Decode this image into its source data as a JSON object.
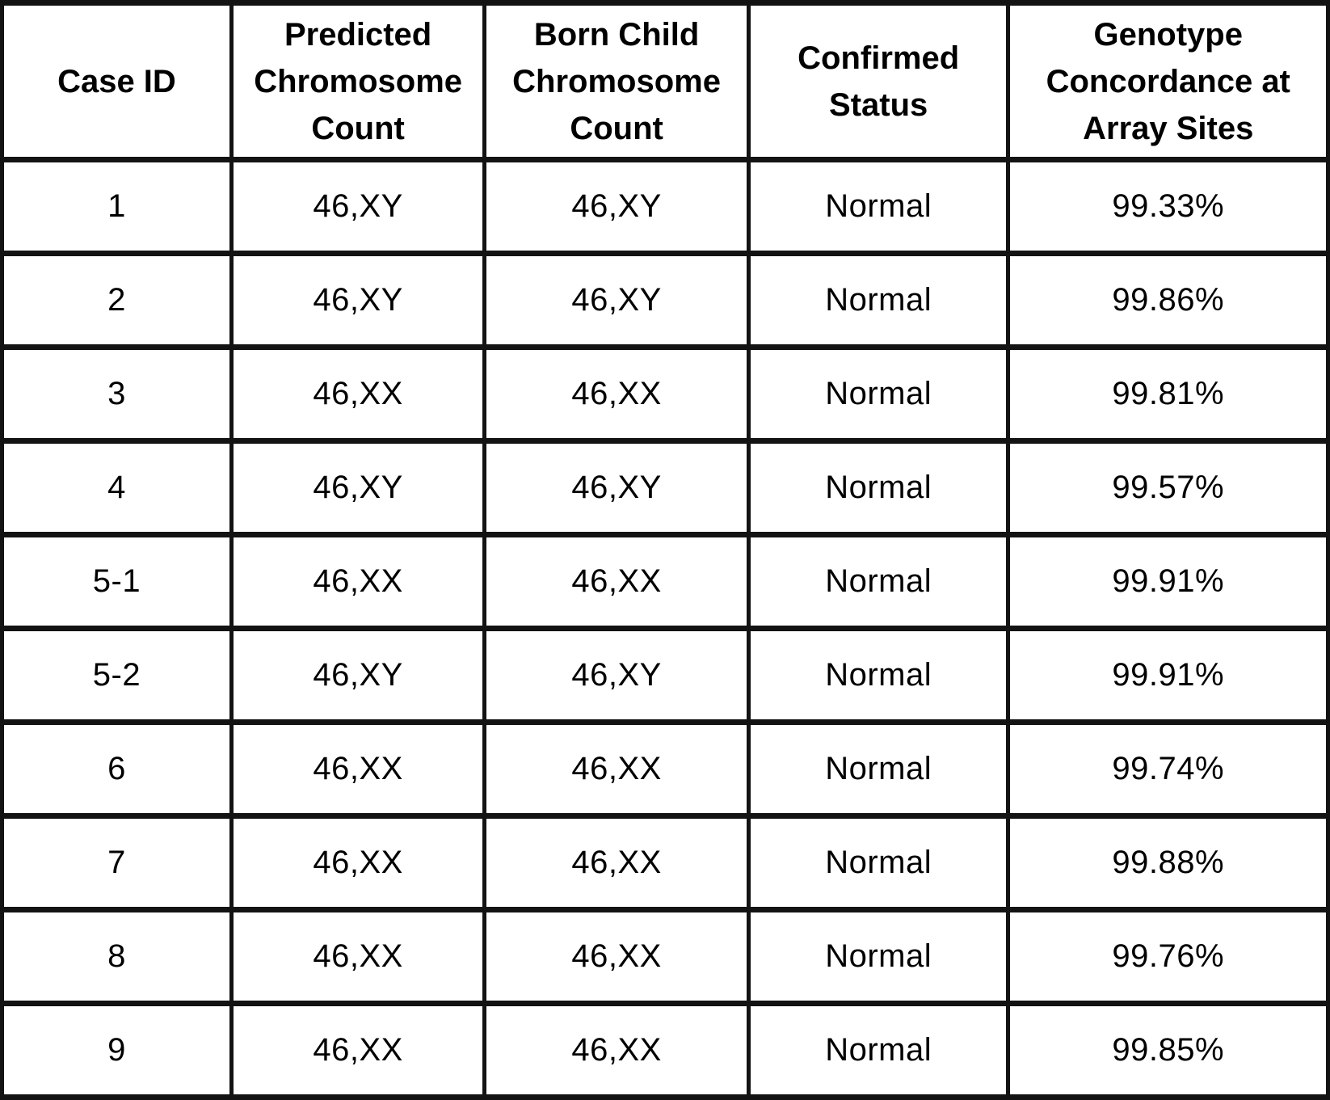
{
  "chart_data": {
    "type": "table",
    "columns": [
      "Case ID",
      "Predicted Chromosome Count",
      "Born Child Chromosome Count",
      "Confirmed Status",
      "Genotype Concordance at Array Sites"
    ],
    "rows": [
      [
        "1",
        "46,XY",
        "46,XY",
        "Normal",
        "99.33%"
      ],
      [
        "2",
        "46,XY",
        "46,XY",
        "Normal",
        "99.86%"
      ],
      [
        "3",
        "46,XX",
        "46,XX",
        "Normal",
        "99.81%"
      ],
      [
        "4",
        "46,XY",
        "46,XY",
        "Normal",
        "99.57%"
      ],
      [
        "5-1",
        "46,XX",
        "46,XX",
        "Normal",
        "99.91%"
      ],
      [
        "5-2",
        "46,XY",
        "46,XY",
        "Normal",
        "99.91%"
      ],
      [
        "6",
        "46,XX",
        "46,XX",
        "Normal",
        "99.74%"
      ],
      [
        "7",
        "46,XX",
        "46,XX",
        "Normal",
        "99.88%"
      ],
      [
        "8",
        "46,XX",
        "46,XX",
        "Normal",
        "99.76%"
      ],
      [
        "9",
        "46,XX",
        "46,XX",
        "Normal",
        "99.85%"
      ]
    ],
    "layout": {
      "grid": "on",
      "header_row": true,
      "border_color": "#131313",
      "background_color": "#ffffff",
      "text_color": "#000000"
    }
  }
}
